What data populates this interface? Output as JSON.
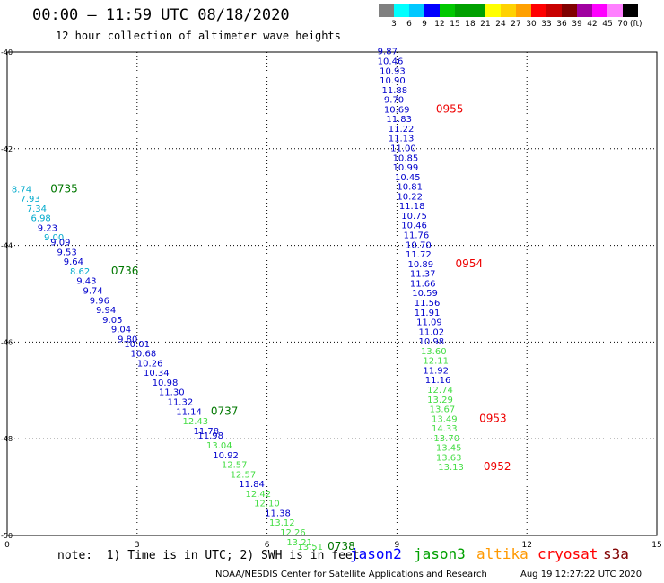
{
  "header": {
    "title": "00:00 – 11:59 UTC 08/18/2020",
    "subtitle": "12 hour collection of altimeter wave heights"
  },
  "colorbar": {
    "colors": [
      "#808080",
      "#00ffff",
      "#00c8ff",
      "#0000ff",
      "#00c800",
      "#00a000",
      "#00a000",
      "#ffff00",
      "#ffd200",
      "#ffa000",
      "#ff0000",
      "#c80000",
      "#800000",
      "#a000a0",
      "#ff00ff",
      "#ff80ff",
      "#000000"
    ],
    "ticks": [
      "3",
      "6",
      "9",
      "12",
      "15",
      "18",
      "21",
      "24",
      "27",
      "30",
      "33",
      "36",
      "39",
      "42",
      "45",
      "70"
    ],
    "unit": "(ft)"
  },
  "note": "note:  1) Time is in UTC; 2) SWH is in feet",
  "legend": [
    {
      "label": "jason2",
      "color": "#0000ff"
    },
    {
      "label": "jason3",
      "color": "#00a000"
    },
    {
      "label": "altika",
      "color": "#ff9900"
    },
    {
      "label": "cryosat",
      "color": "#ff0000"
    },
    {
      "label": "s3a",
      "color": "#800000"
    }
  ],
  "footer": {
    "credit": "NOAA/NESDIS Center for Satellite Applications and Research",
    "timestamp": "Aug 19 12:27:22 UTC 2020"
  },
  "chart_data": {
    "type": "scatter",
    "title": "",
    "xlabel": "",
    "ylabel": "",
    "xlim": [
      0,
      15
    ],
    "ylim": [
      -50,
      -40
    ],
    "x_ticks": [
      "0",
      "3",
      "6",
      "9",
      "12",
      "15"
    ],
    "y_ticks": [
      "-40",
      "-42",
      "-44",
      "-46",
      "-48",
      "-50"
    ],
    "grid": true,
    "series": [
      {
        "name": "track-west",
        "points": [
          {
            "x": 0.1,
            "y": -42.9,
            "text": "8.74",
            "c": "#00aacc"
          },
          {
            "x": 0.3,
            "y": -43.1,
            "text": "7.93",
            "c": "#00aacc"
          },
          {
            "x": 0.45,
            "y": -43.3,
            "text": "7.34",
            "c": "#00aacc"
          },
          {
            "x": 0.55,
            "y": -43.5,
            "text": "6.98",
            "c": "#00aacc"
          },
          {
            "x": 0.7,
            "y": -43.7,
            "text": "9.23",
            "c": "#0000cc"
          },
          {
            "x": 0.85,
            "y": -43.9,
            "text": "9.00",
            "c": "#00aacc"
          },
          {
            "x": 1.0,
            "y": -44.0,
            "text": "9.09",
            "c": "#0000cc"
          },
          {
            "x": 1.15,
            "y": -44.2,
            "text": "9.53",
            "c": "#0000cc"
          },
          {
            "x": 1.3,
            "y": -44.4,
            "text": "9.64",
            "c": "#0000cc"
          },
          {
            "x": 1.45,
            "y": -44.6,
            "text": "8.62",
            "c": "#00aacc"
          },
          {
            "x": 1.6,
            "y": -44.8,
            "text": "9.43",
            "c": "#0000cc"
          },
          {
            "x": 1.75,
            "y": -45.0,
            "text": "9.74",
            "c": "#0000cc"
          },
          {
            "x": 1.9,
            "y": -45.2,
            "text": "9.96",
            "c": "#0000cc"
          },
          {
            "x": 2.05,
            "y": -45.4,
            "text": "9.94",
            "c": "#0000cc"
          },
          {
            "x": 2.2,
            "y": -45.6,
            "text": "9.05",
            "c": "#0000cc"
          },
          {
            "x": 2.4,
            "y": -45.8,
            "text": "9.04",
            "c": "#0000cc"
          },
          {
            "x": 2.55,
            "y": -46.0,
            "text": "9.80",
            "c": "#0000cc"
          },
          {
            "x": 2.7,
            "y": -46.1,
            "text": "10.01",
            "c": "#0000cc"
          },
          {
            "x": 2.85,
            "y": -46.3,
            "text": "10.68",
            "c": "#0000cc"
          },
          {
            "x": 3.0,
            "y": -46.5,
            "text": "10.26",
            "c": "#0000cc"
          },
          {
            "x": 3.15,
            "y": -46.7,
            "text": "10.34",
            "c": "#0000cc"
          },
          {
            "x": 3.35,
            "y": -46.9,
            "text": "10.98",
            "c": "#0000cc"
          },
          {
            "x": 3.5,
            "y": -47.1,
            "text": "11.30",
            "c": "#0000cc"
          },
          {
            "x": 3.7,
            "y": -47.3,
            "text": "11.32",
            "c": "#0000cc"
          },
          {
            "x": 3.9,
            "y": -47.5,
            "text": "11.14",
            "c": "#0000cc"
          },
          {
            "x": 4.05,
            "y": -47.7,
            "text": "12.43",
            "c": "#44dd44"
          },
          {
            "x": 4.3,
            "y": -47.9,
            "text": "11.78",
            "c": "#0000cc"
          },
          {
            "x": 4.4,
            "y": -48.0,
            "text": "11.98",
            "c": "#0000cc"
          },
          {
            "x": 4.6,
            "y": -48.2,
            "text": "13.04",
            "c": "#44dd44"
          },
          {
            "x": 4.75,
            "y": -48.4,
            "text": "10.92",
            "c": "#0000cc"
          },
          {
            "x": 4.95,
            "y": -48.6,
            "text": "12.57",
            "c": "#44dd44"
          },
          {
            "x": 5.15,
            "y": -48.8,
            "text": "12.57",
            "c": "#44dd44"
          },
          {
            "x": 5.35,
            "y": -49.0,
            "text": "11.84",
            "c": "#0000cc"
          },
          {
            "x": 5.5,
            "y": -49.2,
            "text": "12.42",
            "c": "#44dd44"
          },
          {
            "x": 5.7,
            "y": -49.4,
            "text": "12.10",
            "c": "#44dd44"
          },
          {
            "x": 5.95,
            "y": -49.6,
            "text": "11.38",
            "c": "#0000cc"
          },
          {
            "x": 6.05,
            "y": -49.8,
            "text": "13.12",
            "c": "#44dd44"
          },
          {
            "x": 6.3,
            "y": -50.0,
            "text": "12.26",
            "c": "#44dd44"
          },
          {
            "x": 6.45,
            "y": -50.2,
            "text": "13.21",
            "c": "#44dd44"
          },
          {
            "x": 6.7,
            "y": -50.3,
            "text": "13.51",
            "c": "#44dd44"
          }
        ]
      },
      {
        "name": "track-east",
        "points": [
          {
            "x": 8.55,
            "y": -40.05,
            "text": "9.87",
            "c": "#0000cc"
          },
          {
            "x": 8.55,
            "y": -40.25,
            "text": "10.46",
            "c": "#0000cc"
          },
          {
            "x": 8.6,
            "y": -40.45,
            "text": "10.93",
            "c": "#0000cc"
          },
          {
            "x": 8.6,
            "y": -40.65,
            "text": "10.90",
            "c": "#0000cc"
          },
          {
            "x": 8.65,
            "y": -40.85,
            "text": "11.88",
            "c": "#0000cc"
          },
          {
            "x": 8.7,
            "y": -41.05,
            "text": "9.70",
            "c": "#0000cc"
          },
          {
            "x": 8.7,
            "y": -41.25,
            "text": "10.69",
            "c": "#0000cc"
          },
          {
            "x": 8.75,
            "y": -41.45,
            "text": "11.83",
            "c": "#0000cc"
          },
          {
            "x": 8.8,
            "y": -41.65,
            "text": "11.22",
            "c": "#0000cc"
          },
          {
            "x": 8.8,
            "y": -41.85,
            "text": "11.13",
            "c": "#0000cc"
          },
          {
            "x": 8.85,
            "y": -42.05,
            "text": "11.00",
            "c": "#0000cc"
          },
          {
            "x": 8.9,
            "y": -42.25,
            "text": "10.85",
            "c": "#0000cc"
          },
          {
            "x": 8.9,
            "y": -42.45,
            "text": "10.99",
            "c": "#0000cc"
          },
          {
            "x": 8.95,
            "y": -42.65,
            "text": "10.45",
            "c": "#0000cc"
          },
          {
            "x": 9.0,
            "y": -42.85,
            "text": "10.81",
            "c": "#0000cc"
          },
          {
            "x": 9.0,
            "y": -43.05,
            "text": "10.22",
            "c": "#0000cc"
          },
          {
            "x": 9.05,
            "y": -43.25,
            "text": "11.18",
            "c": "#0000cc"
          },
          {
            "x": 9.1,
            "y": -43.45,
            "text": "10.75",
            "c": "#0000cc"
          },
          {
            "x": 9.1,
            "y": -43.65,
            "text": "10.46",
            "c": "#0000cc"
          },
          {
            "x": 9.15,
            "y": -43.85,
            "text": "11.76",
            "c": "#0000cc"
          },
          {
            "x": 9.2,
            "y": -44.05,
            "text": "10.70",
            "c": "#0000cc"
          },
          {
            "x": 9.2,
            "y": -44.25,
            "text": "11.72",
            "c": "#0000cc"
          },
          {
            "x": 9.25,
            "y": -44.45,
            "text": "10.89",
            "c": "#0000cc"
          },
          {
            "x": 9.3,
            "y": -44.65,
            "text": "11.37",
            "c": "#0000cc"
          },
          {
            "x": 9.3,
            "y": -44.85,
            "text": "11.66",
            "c": "#0000cc"
          },
          {
            "x": 9.35,
            "y": -45.05,
            "text": "10.59",
            "c": "#0000cc"
          },
          {
            "x": 9.4,
            "y": -45.25,
            "text": "11.56",
            "c": "#0000cc"
          },
          {
            "x": 9.4,
            "y": -45.45,
            "text": "11.91",
            "c": "#0000cc"
          },
          {
            "x": 9.45,
            "y": -45.65,
            "text": "11.09",
            "c": "#0000cc"
          },
          {
            "x": 9.5,
            "y": -45.85,
            "text": "11.02",
            "c": "#0000cc"
          },
          {
            "x": 9.5,
            "y": -46.05,
            "text": "10.98",
            "c": "#0000cc"
          },
          {
            "x": 9.55,
            "y": -46.25,
            "text": "13.60",
            "c": "#44dd44"
          },
          {
            "x": 9.6,
            "y": -46.45,
            "text": "12.11",
            "c": "#44dd44"
          },
          {
            "x": 9.6,
            "y": -46.65,
            "text": "11.92",
            "c": "#0000cc"
          },
          {
            "x": 9.65,
            "y": -46.85,
            "text": "11.16",
            "c": "#0000cc"
          },
          {
            "x": 9.7,
            "y": -47.05,
            "text": "12.74",
            "c": "#44dd44"
          },
          {
            "x": 9.7,
            "y": -47.25,
            "text": "13.29",
            "c": "#44dd44"
          },
          {
            "x": 9.75,
            "y": -47.45,
            "text": "13.67",
            "c": "#44dd44"
          },
          {
            "x": 9.8,
            "y": -47.65,
            "text": "13.49",
            "c": "#44dd44"
          },
          {
            "x": 9.8,
            "y": -47.85,
            "text": "14.33",
            "c": "#44dd44"
          },
          {
            "x": 9.85,
            "y": -48.05,
            "text": "13.70",
            "c": "#44dd44"
          },
          {
            "x": 9.9,
            "y": -48.25,
            "text": "13.45",
            "c": "#44dd44"
          },
          {
            "x": 9.9,
            "y": -48.45,
            "text": "13.63",
            "c": "#44dd44"
          },
          {
            "x": 9.95,
            "y": -48.65,
            "text": "13.13",
            "c": "#44dd44"
          }
        ]
      }
    ],
    "time_labels": [
      {
        "x": 1.0,
        "y": -42.9,
        "text": "0735",
        "c": "#007700"
      },
      {
        "x": 2.4,
        "y": -44.6,
        "text": "0736",
        "c": "#007700"
      },
      {
        "x": 4.7,
        "y": -47.5,
        "text": "0737",
        "c": "#007700"
      },
      {
        "x": 7.4,
        "y": -50.3,
        "text": "0738",
        "c": "#007700"
      },
      {
        "x": 9.9,
        "y": -41.25,
        "text": "0955",
        "c": "#ee0000"
      },
      {
        "x": 10.35,
        "y": -44.45,
        "text": "0954",
        "c": "#ee0000"
      },
      {
        "x": 10.9,
        "y": -47.65,
        "text": "0953",
        "c": "#ee0000"
      },
      {
        "x": 11.0,
        "y": -48.65,
        "text": "0952",
        "c": "#ee0000"
      }
    ]
  }
}
